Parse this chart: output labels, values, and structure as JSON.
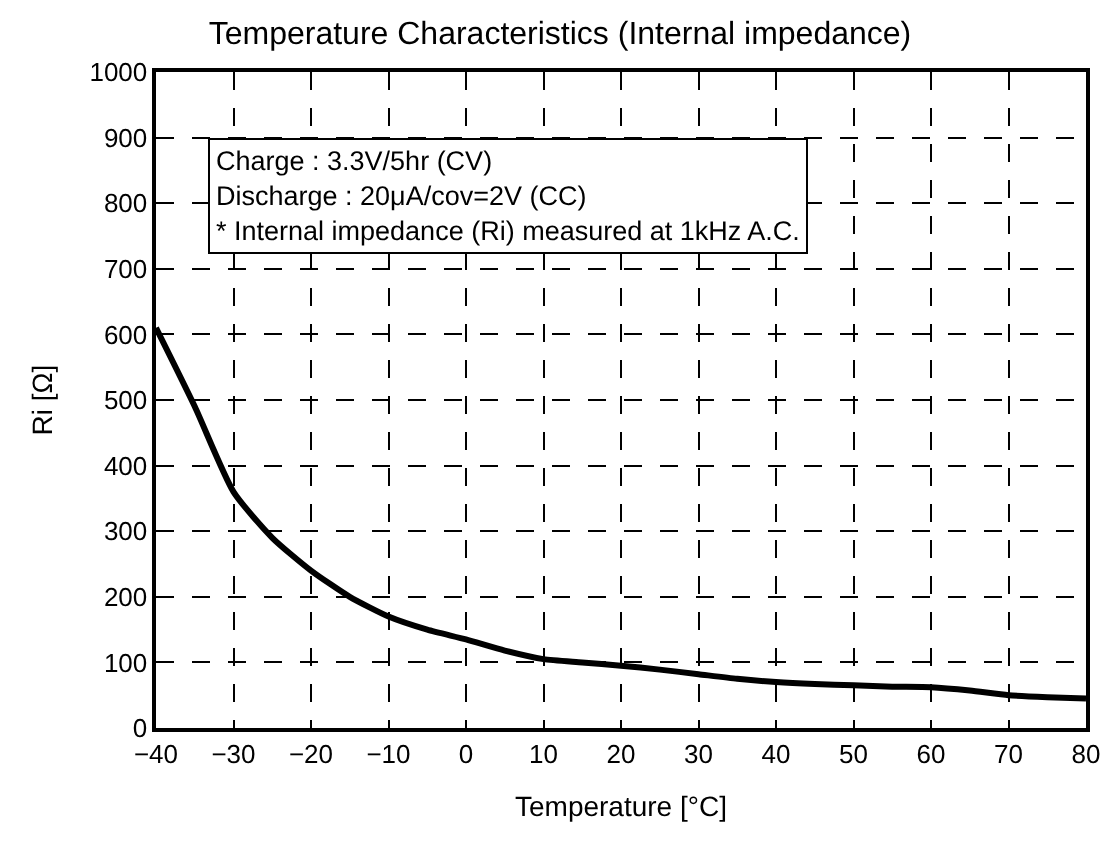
{
  "chart_data": {
    "type": "line",
    "title": "Temperature Characteristics (Internal impedance)",
    "xlabel": "Temperature [°C]",
    "ylabel": "Ri [Ω]",
    "x": [
      -40,
      -35,
      -30,
      -25,
      -20,
      -15,
      -10,
      -5,
      0,
      5,
      10,
      15,
      20,
      25,
      30,
      35,
      40,
      45,
      50,
      55,
      60,
      65,
      70,
      75,
      80
    ],
    "series": [
      {
        "color": "#000000",
        "values": [
          610,
          490,
          360,
          290,
          240,
          200,
          170,
          150,
          135,
          118,
          105,
          100,
          95,
          89,
          82,
          75,
          70,
          67,
          65,
          63,
          62,
          57,
          50,
          47,
          45
        ]
      }
    ],
    "xlim": [
      -40,
      80
    ],
    "xticks": [
      {
        "value": -40,
        "label": "−40"
      },
      {
        "value": -30,
        "label": "−30"
      },
      {
        "value": -20,
        "label": "−20"
      },
      {
        "value": -10,
        "label": "−10"
      },
      0,
      10,
      20,
      30,
      40,
      50,
      60,
      70,
      80
    ],
    "ylim": [
      0,
      1000
    ],
    "yticks": [
      0,
      100,
      200,
      300,
      400,
      500,
      600,
      700,
      800,
      900,
      1000
    ],
    "grid": true,
    "line_style": "solid",
    "marker": "none",
    "annotations": [
      "Charge : 3.3V/5hr (CV)",
      "Discharge : 20μA/cov=2V (CC)",
      "* Internal impedance (Ri) measured at 1kHz A.C."
    ]
  }
}
